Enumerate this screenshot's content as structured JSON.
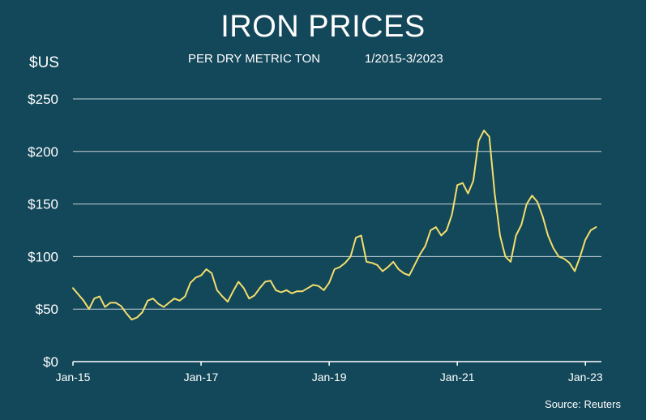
{
  "header": {
    "title": "IRON PRICES",
    "subtitle": "PER DRY METRIC TON",
    "date_range": "1/2015-3/2023",
    "y_unit": "$US"
  },
  "footer": {
    "source": "Source: Reuters"
  },
  "chart_data": {
    "type": "line",
    "title": "IRON PRICES",
    "subtitle": "PER DRY METRIC TON",
    "ylabel": "$US",
    "xlabel": "",
    "ylim": [
      0,
      250
    ],
    "xlim": [
      "2015-01",
      "2023-04"
    ],
    "grid": "horizontal",
    "colors": {
      "line": "#f3df6b",
      "grid": "#c7d3d8",
      "background": "#13475a"
    },
    "y_ticks": [
      {
        "value": 0,
        "label": "$0"
      },
      {
        "value": 50,
        "label": "$50"
      },
      {
        "value": 100,
        "label": "$100"
      },
      {
        "value": 150,
        "label": "$150"
      },
      {
        "value": 200,
        "label": "$200"
      },
      {
        "value": 250,
        "label": "$250"
      }
    ],
    "x_ticks": [
      {
        "value": "2015-01",
        "label": "Jan-15"
      },
      {
        "value": "2017-01",
        "label": "Jan-17"
      },
      {
        "value": "2019-01",
        "label": "Jan-19"
      },
      {
        "value": "2021-01",
        "label": "Jan-21"
      },
      {
        "value": "2023-01",
        "label": "Jan-23"
      }
    ],
    "series": [
      {
        "x": [
          "2015-01",
          "2015-02",
          "2015-03",
          "2015-04",
          "2015-05",
          "2015-06",
          "2015-07",
          "2015-08",
          "2015-09",
          "2015-10",
          "2015-11",
          "2015-12",
          "2016-01",
          "2016-02",
          "2016-03",
          "2016-04",
          "2016-05",
          "2016-06",
          "2016-07",
          "2016-08",
          "2016-09",
          "2016-10",
          "2016-11",
          "2016-12",
          "2017-01",
          "2017-02",
          "2017-03",
          "2017-04",
          "2017-05",
          "2017-06",
          "2017-07",
          "2017-08",
          "2017-09",
          "2017-10",
          "2017-11",
          "2017-12",
          "2018-01",
          "2018-02",
          "2018-03",
          "2018-04",
          "2018-05",
          "2018-06",
          "2018-07",
          "2018-08",
          "2018-09",
          "2018-10",
          "2018-11",
          "2018-12",
          "2019-01",
          "2019-02",
          "2019-03",
          "2019-04",
          "2019-05",
          "2019-06",
          "2019-07",
          "2019-08",
          "2019-09",
          "2019-10",
          "2019-11",
          "2019-12",
          "2020-01",
          "2020-02",
          "2020-03",
          "2020-04",
          "2020-05",
          "2020-06",
          "2020-07",
          "2020-08",
          "2020-09",
          "2020-10",
          "2020-11",
          "2020-12",
          "2021-01",
          "2021-02",
          "2021-03",
          "2021-04",
          "2021-05",
          "2021-06",
          "2021-07",
          "2021-08",
          "2021-09",
          "2021-10",
          "2021-11",
          "2021-12",
          "2022-01",
          "2022-02",
          "2022-03",
          "2022-04",
          "2022-05",
          "2022-06",
          "2022-07",
          "2022-08",
          "2022-09",
          "2022-10",
          "2022-11",
          "2022-12",
          "2023-01",
          "2023-02",
          "2023-03"
        ],
        "values": [
          70,
          64,
          58,
          50,
          60,
          62,
          52,
          56,
          56,
          53,
          46,
          40,
          42,
          47,
          58,
          60,
          55,
          52,
          56,
          60,
          58,
          62,
          75,
          80,
          82,
          88,
          84,
          68,
          62,
          57,
          67,
          76,
          70,
          60,
          63,
          70,
          76,
          77,
          68,
          66,
          68,
          65,
          67,
          67,
          70,
          73,
          72,
          68,
          75,
          88,
          90,
          94,
          100,
          118,
          120,
          95,
          94,
          92,
          86,
          90,
          95,
          88,
          84,
          82,
          92,
          102,
          110,
          125,
          128,
          120,
          125,
          140,
          168,
          170,
          160,
          172,
          210,
          220,
          214,
          160,
          120,
          100,
          95,
          120,
          130,
          150,
          158,
          152,
          138,
          120,
          108,
          100,
          98,
          94,
          86,
          100,
          116,
          125,
          128
        ]
      }
    ]
  }
}
